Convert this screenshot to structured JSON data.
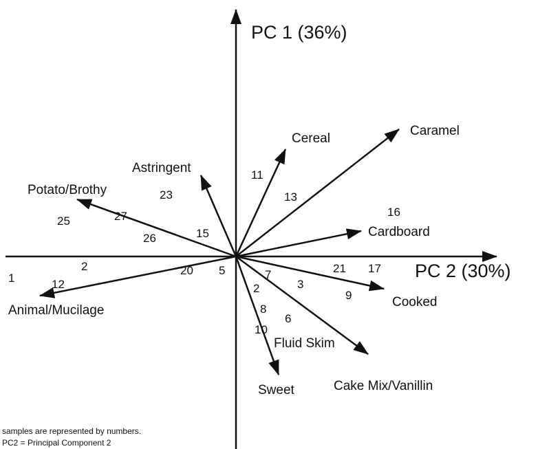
{
  "axes": {
    "vertical": "PC 1 (36%)",
    "horizontal": "PC 2 (30%)"
  },
  "vectors": [
    {
      "label": "Caramel"
    },
    {
      "label": "Cereal"
    },
    {
      "label": "Astringent"
    },
    {
      "label": "Potato/Brothy"
    },
    {
      "label": "Cardboard"
    },
    {
      "label": "Cooked"
    },
    {
      "label": "Cake Mix/Vanillin"
    },
    {
      "label": "Sweet"
    },
    {
      "label": "Animal/Mucilage"
    },
    {
      "label": "Fluid Skim"
    }
  ],
  "samples": [
    "25",
    "27",
    "23",
    "26",
    "15",
    "11",
    "13",
    "16",
    "1",
    "2",
    "12",
    "20",
    "5",
    "7",
    "2",
    "3",
    "21",
    "17",
    "9",
    "8",
    "6",
    "10"
  ],
  "notes": [
    "samples are represented by numbers.",
    "PC2 = Principal Component 2"
  ]
}
